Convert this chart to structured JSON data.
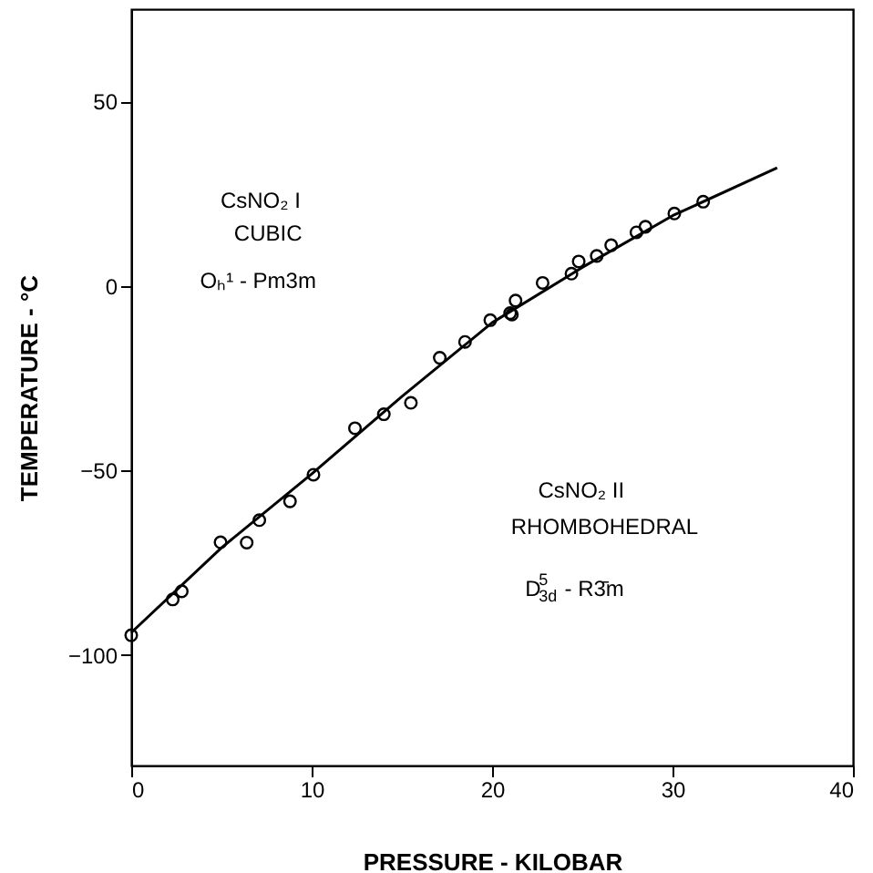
{
  "chart_data": {
    "type": "scatter",
    "xlabel": "PRESSURE - KILOBAR",
    "ylabel": "TEMPERATURE - °C",
    "xlim": [
      0,
      40
    ],
    "xticks": [
      0,
      10,
      20,
      30,
      40
    ],
    "ylim": [
      -130,
      75
    ],
    "yticks": [
      -100,
      -50,
      0,
      50
    ],
    "grid": false,
    "series": [
      {
        "type": "scatter",
        "marker": "circle",
        "color": "#000000",
        "x": [
          0,
          2.3,
          2.8,
          4.95,
          6.4,
          7.1,
          8.8,
          10.1,
          12.4,
          14.0,
          15.5,
          17.1,
          18.5,
          19.9,
          21.0,
          21.1,
          21.3,
          22.8,
          24.4,
          24.8,
          25.8,
          26.6,
          28.0,
          28.5,
          30.1,
          31.7
        ],
        "values": [
          -94.7,
          -85,
          -82.8,
          -69.5,
          -69.6,
          -63.5,
          -58.4,
          -51.2,
          -38.6,
          -34.8,
          -31.7,
          -19.5,
          -15.2,
          -9.3,
          -7.4,
          -7.8,
          -4,
          0.8,
          3.3,
          6.6,
          8.1,
          11,
          14.5,
          16,
          19.6,
          22.8
        ]
      },
      {
        "type": "line",
        "marker": "none",
        "line_style": "solid",
        "color": "#000000",
        "x": [
          0,
          5,
          10,
          15,
          20,
          25,
          30,
          35.8
        ],
        "values": [
          -94,
          -71,
          -51,
          -30,
          -10,
          5,
          19,
          32
        ]
      }
    ],
    "annotations": [
      "CsNO₂ I",
      "CUBIC",
      "Oₕ¹ - Pm3m",
      "CsNO₂ II",
      "RHOMBOHEDRAL",
      "D$^{5}$$_{3d}$ - R3̄m"
    ]
  }
}
